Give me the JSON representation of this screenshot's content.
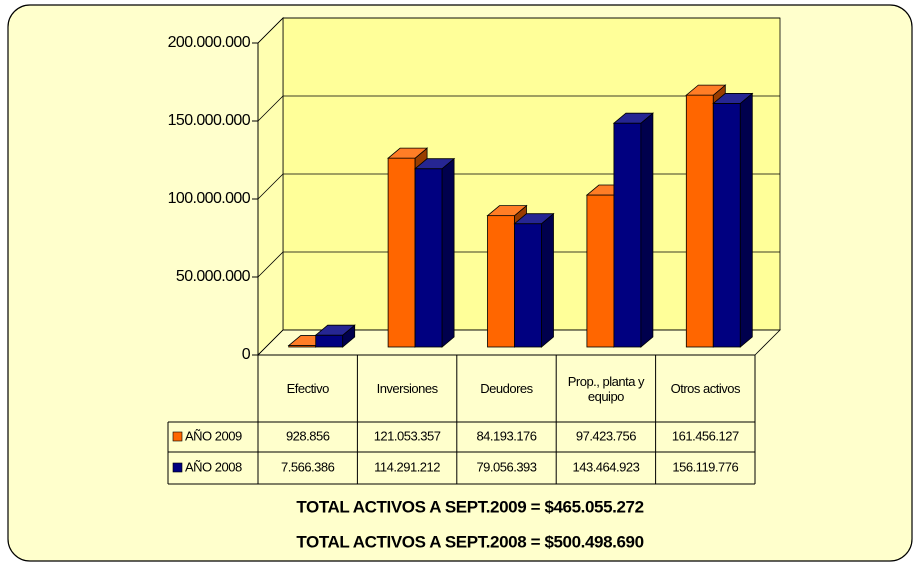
{
  "chart_data": {
    "type": "bar3d",
    "categories": [
      "Efectivo",
      "Inversiones",
      "Deudores",
      "Prop., planta y equipo",
      "Otros activos"
    ],
    "series": [
      {
        "name": "AÑO 2009",
        "color": "#ff6600",
        "values": [
          928856,
          121053357,
          84193176,
          97423756,
          161456127
        ],
        "value_labels": [
          "928.856",
          "121.053.357",
          "84.193.176",
          "97.423.756",
          "161.456.127"
        ]
      },
      {
        "name": "AÑO 2008",
        "color": "#000080",
        "values": [
          7566386,
          114291212,
          79056393,
          143464923,
          156119776
        ],
        "value_labels": [
          "7.566.386",
          "114.291.212",
          "79.056.393",
          "143.464.923",
          "156.119.776"
        ]
      }
    ],
    "ylim": [
      0,
      200000000
    ],
    "yticks": [
      0,
      {
        "value": 50000000,
        "label": "50.000.000"
      },
      {
        "value": 100000000,
        "label": "100.000.000"
      },
      {
        "value": 150000000,
        "label": "150.000.000"
      },
      {
        "value": 200000000,
        "label": "200.000.000"
      }
    ],
    "grid": true,
    "annotations": [
      "TOTAL ACTIVOS A SEPT.2009 = $465.055.272",
      "TOTAL ACTIVOS A SEPT.2008 = $500.498.690"
    ]
  }
}
